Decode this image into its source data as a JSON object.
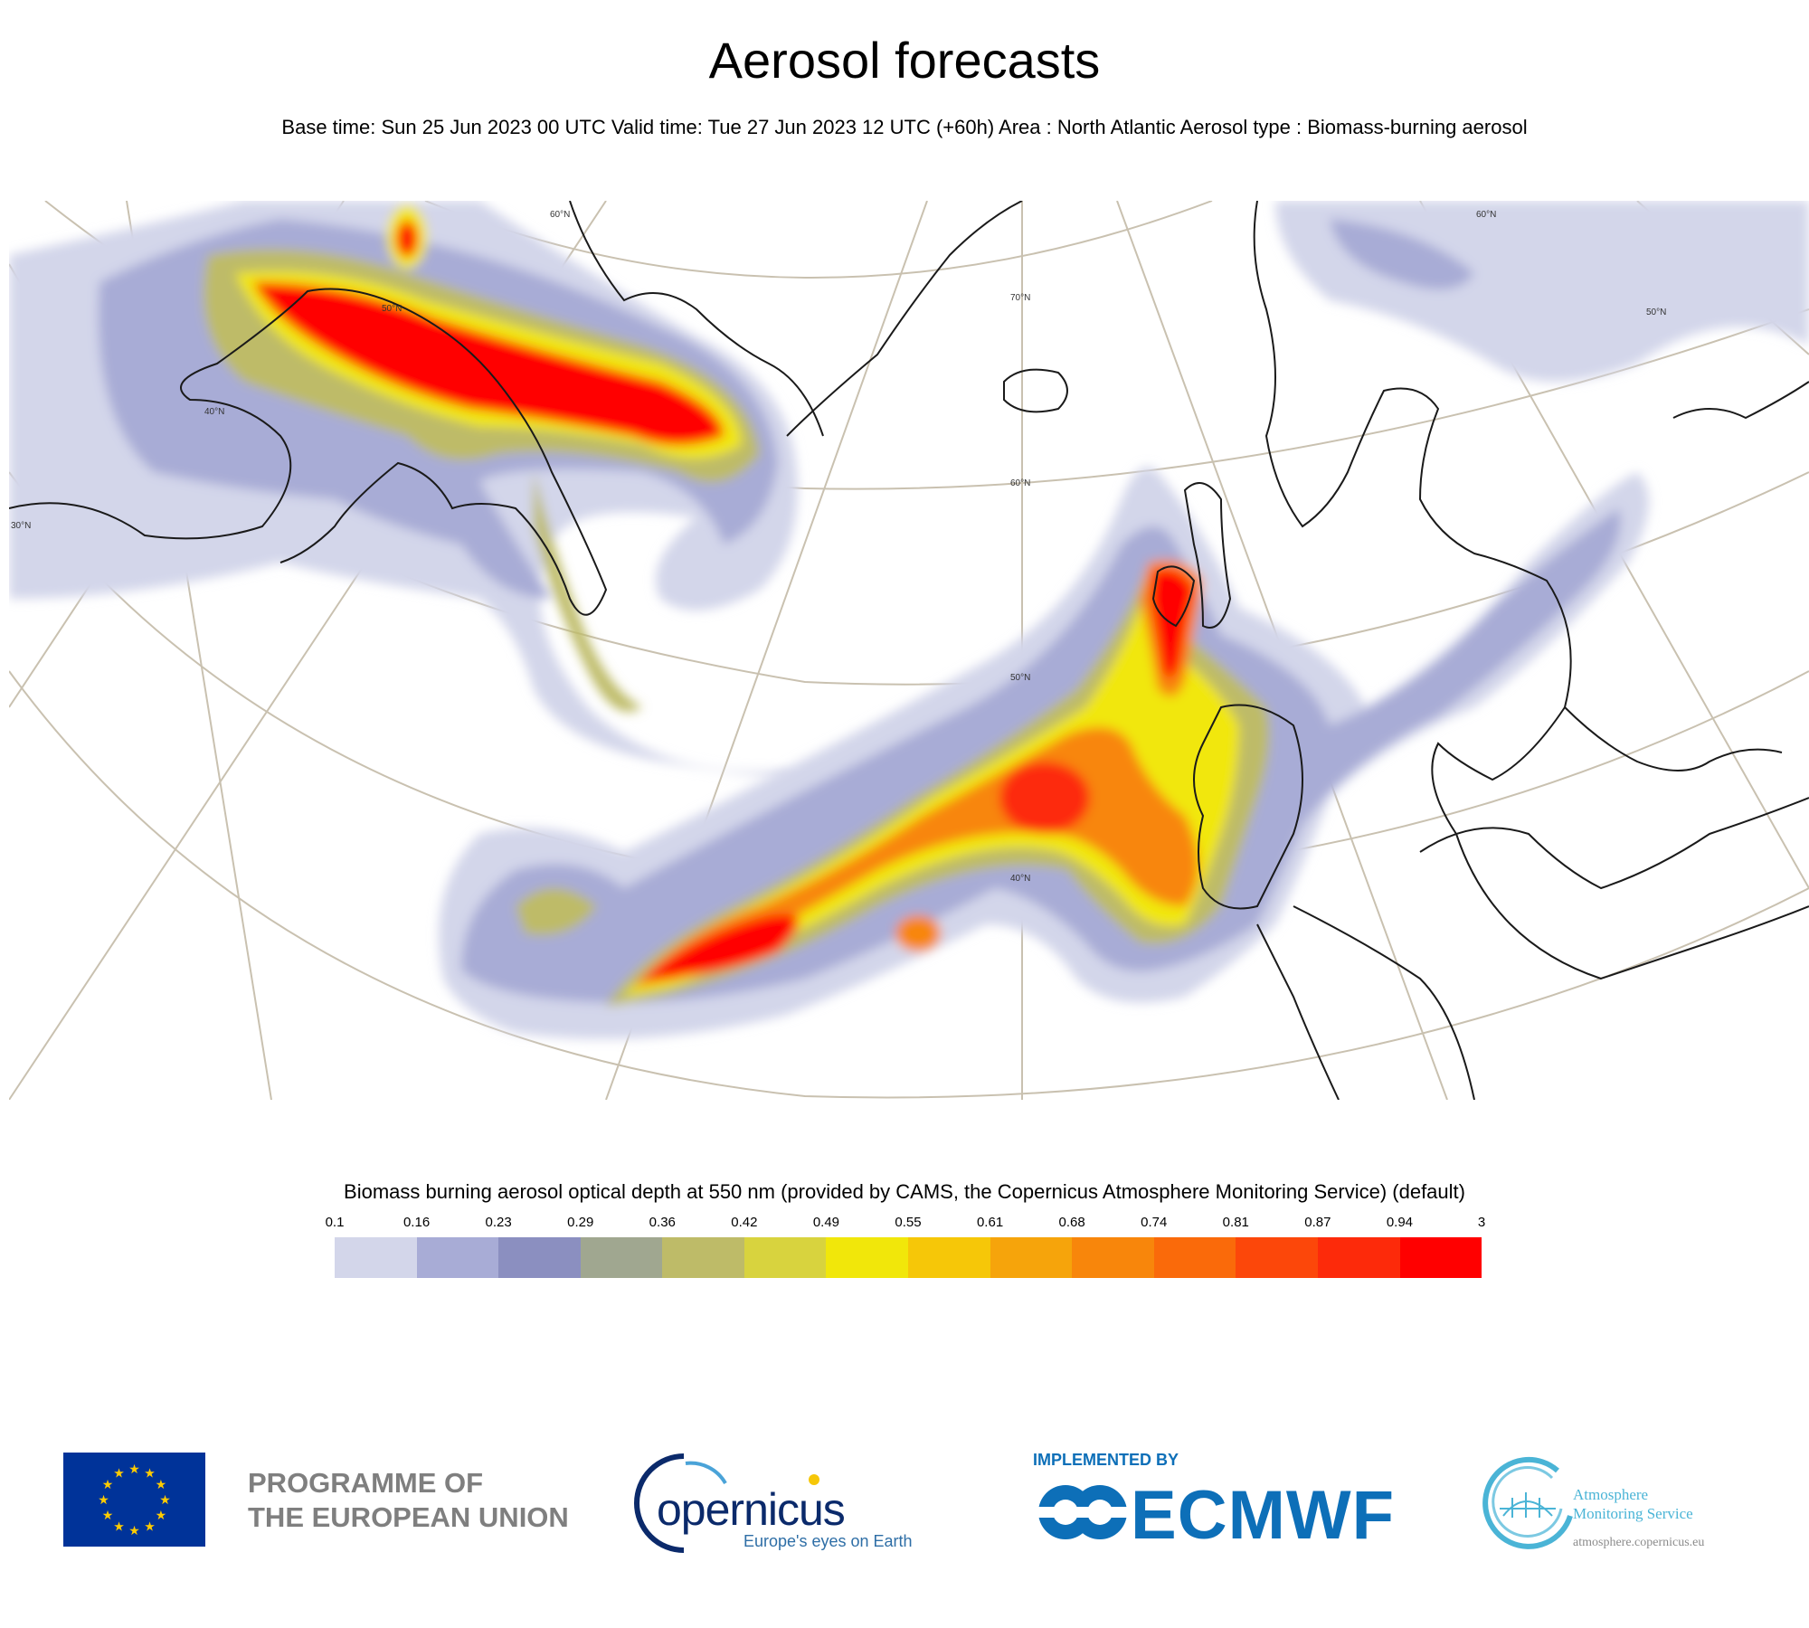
{
  "header": {
    "title": "Aerosol forecasts",
    "subtitle": "Base time: Sun 25 Jun 2023 00 UTC Valid time: Tue 27 Jun 2023 12 UTC (+60h) Area : North Atlantic Aerosol type : Biomass-burning aerosol"
  },
  "map": {
    "area": "North Atlantic",
    "latitude_labels": [
      "70°N",
      "60°N",
      "50°N",
      "40°N",
      "30°N",
      "60°N",
      "50°N",
      "40°N",
      "60°N",
      "50°N"
    ],
    "plume_color_max": "#ff0000",
    "land_outline_color": "#000000",
    "graticule_color": "#c9c1b0"
  },
  "legend": {
    "title": "Biomass burning aerosol optical depth at 550 nm (provided by CAMS, the Copernicus Atmosphere Monitoring Service) (default)",
    "ticks": [
      "0.1",
      "0.16",
      "0.23",
      "0.29",
      "0.36",
      "0.42",
      "0.49",
      "0.55",
      "0.61",
      "0.68",
      "0.74",
      "0.81",
      "0.87",
      "0.94",
      "3"
    ],
    "colors": [
      "#d3d6ea",
      "#a8acd6",
      "#8b8fc0",
      "#a0a790",
      "#bebb68",
      "#d8d33e",
      "#f1e70a",
      "#f6c708",
      "#f6a40b",
      "#f8860b",
      "#fa6a0a",
      "#fc470a",
      "#fd2a0a",
      "#ff0000"
    ]
  },
  "logos": {
    "eu_text_line1": "PROGRAMME OF",
    "eu_text_line2": "THE EUROPEAN UNION",
    "copernicus_word": "opernicus",
    "copernicus_tagline": "Europe's eyes on Earth",
    "implemented_by": "IMPLEMENTED BY",
    "ecmwf": "ECMWF",
    "ams_line1": "Atmosphere",
    "ams_line2": "Monitoring Service",
    "ams_url": "atmosphere.copernicus.eu"
  }
}
